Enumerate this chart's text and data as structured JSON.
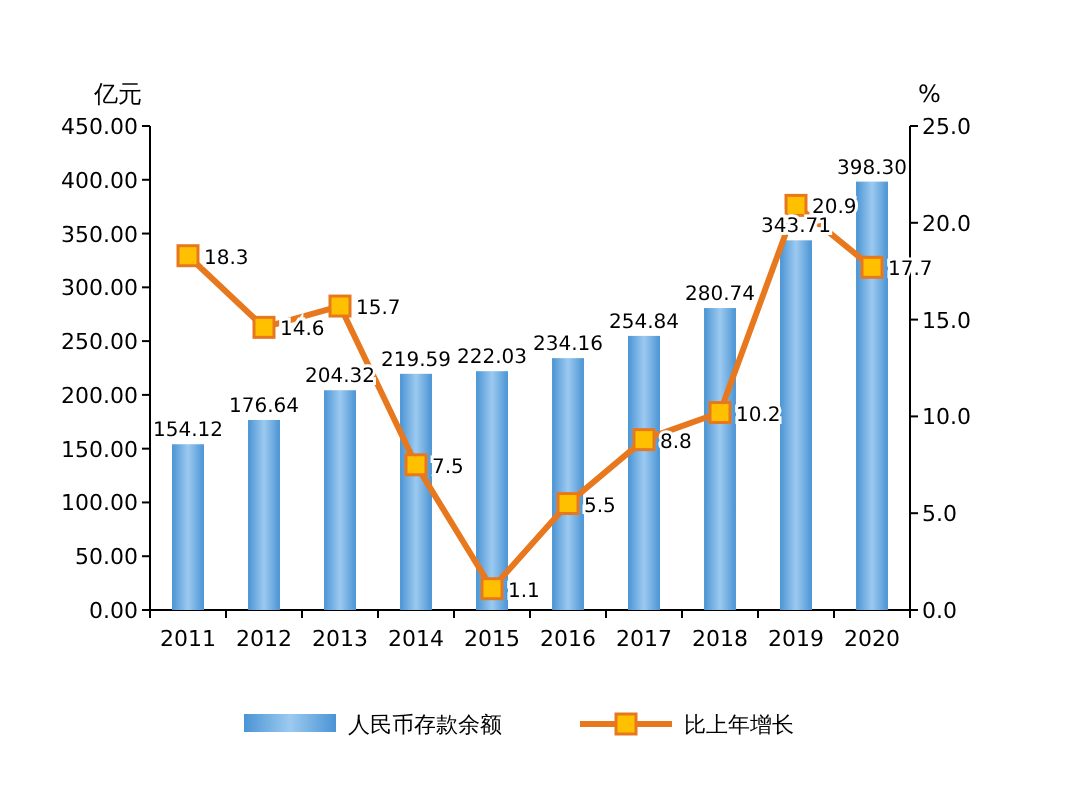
{
  "chart_data": {
    "type": "bar",
    "ylabel": "亿元",
    "y2label": "%",
    "categories": [
      "2011",
      "2012",
      "2013",
      "2014",
      "2015",
      "2016",
      "2017",
      "2018",
      "2019",
      "2020"
    ],
    "series": [
      {
        "name": "人民币存款余额",
        "color": "#4a94d4",
        "values": [
          154.12,
          176.64,
          204.32,
          219.59,
          222.03,
          234.16,
          254.84,
          280.74,
          343.71,
          398.3
        ],
        "value_labels": [
          "154.12",
          "176.64",
          "204.32",
          "219.59",
          "222.03",
          "234.16",
          "254.84",
          "280.74",
          "343.71",
          "398.30"
        ]
      },
      {
        "name": "比上年增长",
        "type": "line",
        "axis": "y2",
        "color": "#e8781e",
        "values": [
          18.3,
          14.6,
          15.7,
          7.5,
          1.1,
          5.5,
          8.8,
          10.2,
          20.9,
          17.7
        ],
        "value_labels": [
          "18.3",
          "14.6",
          "15.7",
          "7.5",
          "1.1",
          "5.5",
          "8.8",
          "10.2",
          "20.9",
          "17.7"
        ]
      }
    ],
    "ylim": [
      0,
      450
    ],
    "yticks": [
      {
        "value": 0,
        "label": "0.00"
      },
      {
        "value": 50,
        "label": "50.00"
      },
      {
        "value": 100,
        "label": "100.00"
      },
      {
        "value": 150,
        "label": "150.00"
      },
      {
        "value": 200,
        "label": "200.00"
      },
      {
        "value": 250,
        "label": "250.00"
      },
      {
        "value": 300,
        "label": "300.00"
      },
      {
        "value": 350,
        "label": "350.00"
      },
      {
        "value": 400,
        "label": "400.00"
      },
      {
        "value": 450,
        "label": "450.00"
      }
    ],
    "y2lim": [
      0,
      25
    ],
    "y2ticks": [
      {
        "value": 0,
        "label": "0.0"
      },
      {
        "value": 5,
        "label": "5.0"
      },
      {
        "value": 10,
        "label": "10.0"
      },
      {
        "value": 15,
        "label": "15.0"
      },
      {
        "value": 20,
        "label": "20.0"
      },
      {
        "value": 25,
        "label": "25.0"
      }
    ],
    "legend": "bottom",
    "marker": "square",
    "grid": false
  }
}
